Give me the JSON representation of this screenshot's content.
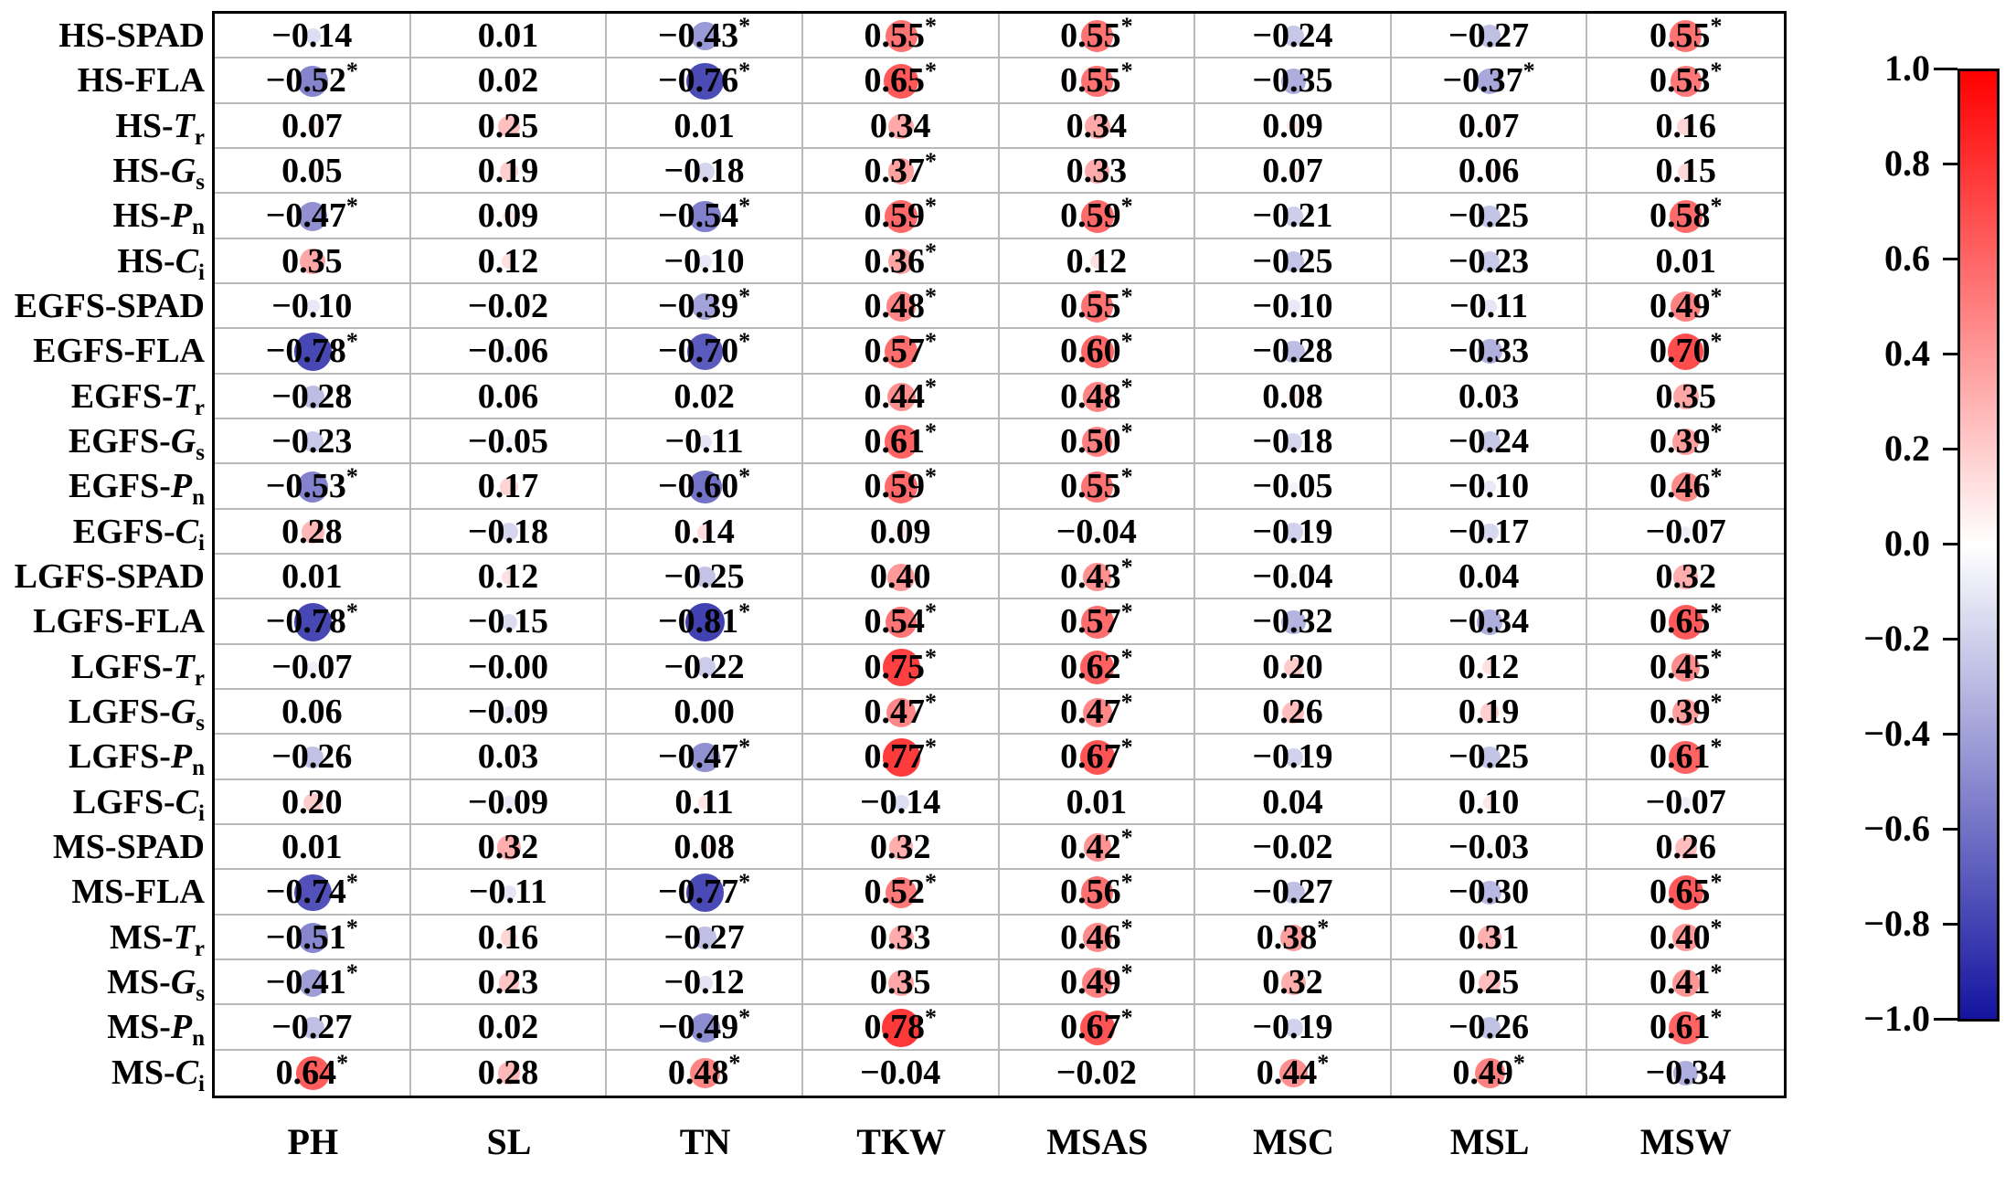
{
  "chart_data": {
    "type": "heatmap",
    "subtype": "correlation-bubble-matrix",
    "columns": [
      "PH",
      "SL",
      "TN",
      "TKW",
      "MSAS",
      "MSC",
      "MSL",
      "MSW"
    ],
    "rows": [
      {
        "group": "HS-",
        "var": "SPAD",
        "sub": "",
        "italic": false
      },
      {
        "group": "HS-",
        "var": "FLA",
        "sub": "",
        "italic": false
      },
      {
        "group": "HS-",
        "var": "T",
        "sub": "r",
        "italic": true
      },
      {
        "group": "HS-",
        "var": "G",
        "sub": "s",
        "italic": true
      },
      {
        "group": "HS-",
        "var": "P",
        "sub": "n",
        "italic": true
      },
      {
        "group": "HS-",
        "var": "C",
        "sub": "i",
        "italic": true
      },
      {
        "group": "EGFS-",
        "var": "SPAD",
        "sub": "",
        "italic": false
      },
      {
        "group": "EGFS-",
        "var": "FLA",
        "sub": "",
        "italic": false
      },
      {
        "group": "EGFS-",
        "var": "T",
        "sub": "r",
        "italic": true
      },
      {
        "group": "EGFS-",
        "var": "G",
        "sub": "s",
        "italic": true
      },
      {
        "group": "EGFS-",
        "var": "P",
        "sub": "n",
        "italic": true
      },
      {
        "group": "EGFS-",
        "var": "C",
        "sub": "i",
        "italic": true
      },
      {
        "group": "LGFS-",
        "var": "SPAD",
        "sub": "",
        "italic": false
      },
      {
        "group": "LGFS-",
        "var": "FLA",
        "sub": "",
        "italic": false
      },
      {
        "group": "LGFS-",
        "var": "T",
        "sub": "r",
        "italic": true
      },
      {
        "group": "LGFS-",
        "var": "G",
        "sub": "s",
        "italic": true
      },
      {
        "group": "LGFS-",
        "var": "P",
        "sub": "n",
        "italic": true
      },
      {
        "group": "LGFS-",
        "var": "C",
        "sub": "i",
        "italic": true
      },
      {
        "group": "MS-",
        "var": "SPAD",
        "sub": "",
        "italic": false
      },
      {
        "group": "MS-",
        "var": "FLA",
        "sub": "",
        "italic": false
      },
      {
        "group": "MS-",
        "var": "T",
        "sub": "r",
        "italic": true
      },
      {
        "group": "MS-",
        "var": "G",
        "sub": "s",
        "italic": true
      },
      {
        "group": "MS-",
        "var": "P",
        "sub": "n",
        "italic": true
      },
      {
        "group": "MS-",
        "var": "C",
        "sub": "i",
        "italic": true
      }
    ],
    "cells": [
      [
        "-0.14",
        "0.01",
        "-0.43*",
        "0.55*",
        "0.55*",
        "-0.24",
        "-0.27",
        "0.55*"
      ],
      [
        "-0.52*",
        "0.02",
        "-0.76*",
        "0.65*",
        "0.55*",
        "-0.35",
        "-0.37*",
        "0.53*"
      ],
      [
        "0.07",
        "0.25",
        "0.01",
        "0.34",
        "0.34",
        "0.09",
        "0.07",
        "0.16"
      ],
      [
        "0.05",
        "0.19",
        "-0.18",
        "0.37*",
        "0.33",
        "0.07",
        "0.06",
        "0.15"
      ],
      [
        "-0.47*",
        "0.09",
        "-0.54*",
        "0.59*",
        "0.59*",
        "-0.21",
        "-0.25",
        "0.58*"
      ],
      [
        "0.35",
        "0.12",
        "-0.10",
        "0.36*",
        "0.12",
        "-0.25",
        "-0.23",
        "0.01"
      ],
      [
        "-0.10",
        "-0.02",
        "-0.39*",
        "0.48*",
        "0.55*",
        "-0.10",
        "-0.11",
        "0.49*"
      ],
      [
        "-0.78*",
        "-0.06",
        "-0.70*",
        "0.57*",
        "0.60*",
        "-0.28",
        "-0.33",
        "0.70*"
      ],
      [
        "-0.28",
        "0.06",
        "0.02",
        "0.44*",
        "0.48*",
        "0.08",
        "0.03",
        "0.35"
      ],
      [
        "-0.23",
        "-0.05",
        "-0.11",
        "0.61*",
        "0.50*",
        "-0.18",
        "-0.24",
        "0.39*"
      ],
      [
        "-0.53*",
        "0.17",
        "-0.60*",
        "0.59*",
        "0.55*",
        "-0.05",
        "-0.10",
        "0.46*"
      ],
      [
        "0.28",
        "-0.18",
        "0.14",
        "0.09",
        "-0.04",
        "-0.19",
        "-0.17",
        "-0.07"
      ],
      [
        "0.01",
        "0.12",
        "-0.25",
        "0.40",
        "0.43*",
        "-0.04",
        "0.04",
        "0.32"
      ],
      [
        "-0.78*",
        "-0.15",
        "-0.81*",
        "0.54*",
        "0.57*",
        "-0.32",
        "-0.34",
        "0.65*"
      ],
      [
        "-0.07",
        "-0.00",
        "-0.22",
        "0.75*",
        "0.62*",
        "0.20",
        "0.12",
        "0.45*"
      ],
      [
        "0.06",
        "-0.09",
        "0.00",
        "0.47*",
        "0.47*",
        "0.26",
        "0.19",
        "0.39*"
      ],
      [
        "-0.26",
        "0.03",
        "-0.47*",
        "0.77*",
        "0.67*",
        "-0.19",
        "-0.25",
        "0.61*"
      ],
      [
        "0.20",
        "-0.09",
        "0.11",
        "-0.14",
        "0.01",
        "0.04",
        "0.10",
        "-0.07"
      ],
      [
        "0.01",
        "0.32",
        "0.08",
        "0.32",
        "0.42*",
        "-0.02",
        "-0.03",
        "0.26"
      ],
      [
        "-0.74*",
        "-0.11",
        "-0.77*",
        "0.52*",
        "0.56*",
        "-0.27",
        "-0.30",
        "0.65*"
      ],
      [
        "-0.51*",
        "0.16",
        "-0.27",
        "0.33",
        "0.46*",
        "0.38*",
        "0.31",
        "0.40*"
      ],
      [
        "-0.41*",
        "0.23",
        "-0.12",
        "0.35",
        "0.49*",
        "0.32",
        "0.25",
        "0.41*"
      ],
      [
        "-0.27",
        "0.02",
        "-0.49*",
        "0.78*",
        "0.67*",
        "-0.19",
        "-0.26",
        "0.61*"
      ],
      [
        "0.64*",
        "0.28",
        "0.48*",
        "-0.04",
        "-0.02",
        "0.44*",
        "0.49*",
        "-0.34"
      ]
    ],
    "significance_marker": "*",
    "colorbar": {
      "min": -1.0,
      "max": 1.0,
      "position": "right",
      "ticks": [
        "1.0",
        "0.8",
        "0.6",
        "0.4",
        "0.2",
        "0.0",
        "-0.2",
        "-0.4",
        "-0.6",
        "-0.8",
        "-1.0"
      ],
      "top_color": "#ff0000",
      "mid_color": "#ffffff",
      "bottom_color": "#1414a0"
    },
    "grid": true,
    "legend_position": "none"
  },
  "colors": {
    "background": "#ffffff",
    "border": "#000000",
    "gridline": "#b9b9b9",
    "text": "#000000"
  }
}
